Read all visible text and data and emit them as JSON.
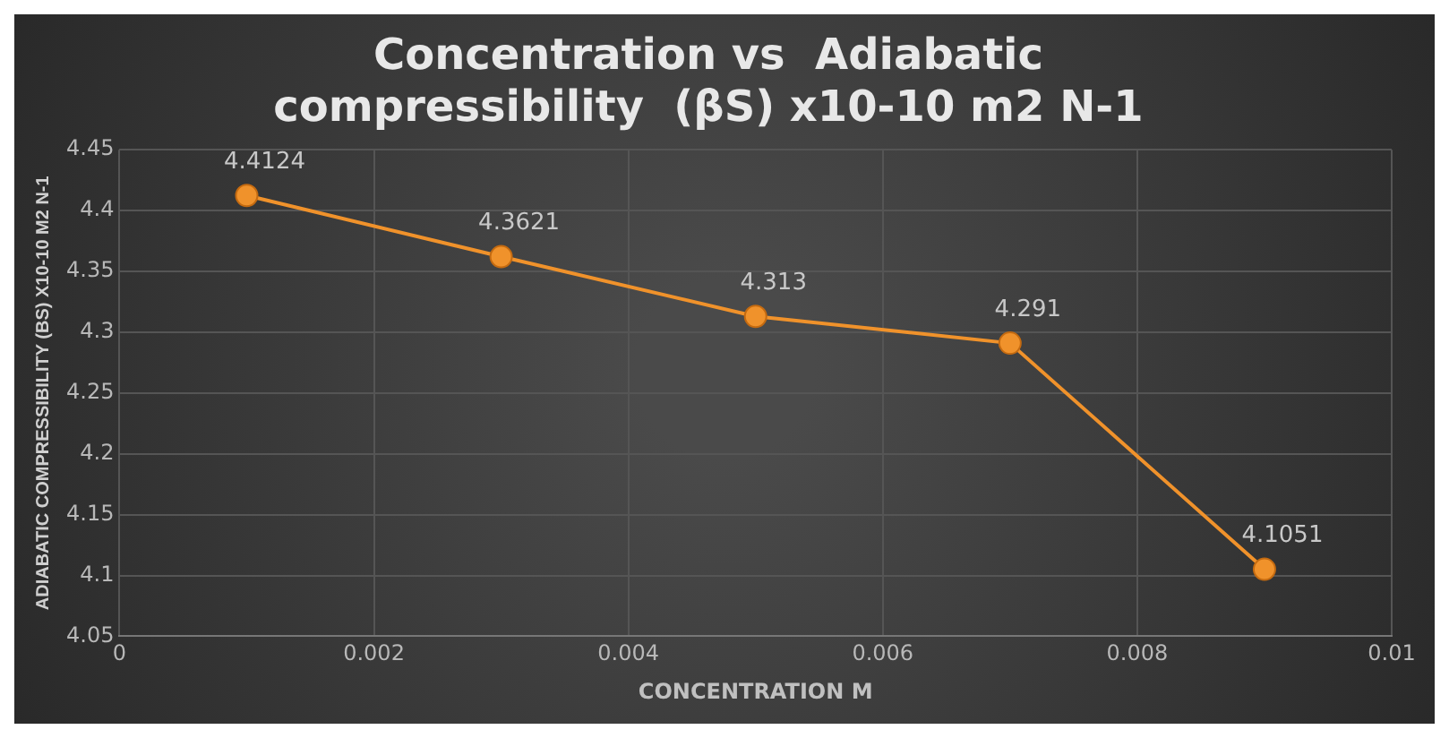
{
  "chart_data": {
    "type": "line",
    "title": [
      "Concentration vs  Adiabatic",
      "compressibility  (βS) x10-10 m2 N-1"
    ],
    "xlabel": "CONCENTRATION M",
    "ylabel": "ADIABATIC COMPRESSIBILITY (BS) X10-10 M2 N-1",
    "x": [
      0.001,
      0.003,
      0.005,
      0.007,
      0.009
    ],
    "series": [
      {
        "color": "#f0922b",
        "values": [
          4.4124,
          4.3621,
          4.313,
          4.291,
          4.1051
        ]
      }
    ],
    "xlim": [
      0,
      0.01
    ],
    "xticks": [
      0,
      0.002,
      0.004,
      0.006,
      0.008,
      0.01
    ],
    "ylim": [
      4.05,
      4.45
    ],
    "yticks": [
      4.05,
      4.1,
      4.15,
      4.2,
      4.25,
      4.3,
      4.35,
      4.4,
      4.45
    ],
    "grid": true,
    "marker": "circle",
    "line_style": "solid",
    "data_labels": true
  }
}
